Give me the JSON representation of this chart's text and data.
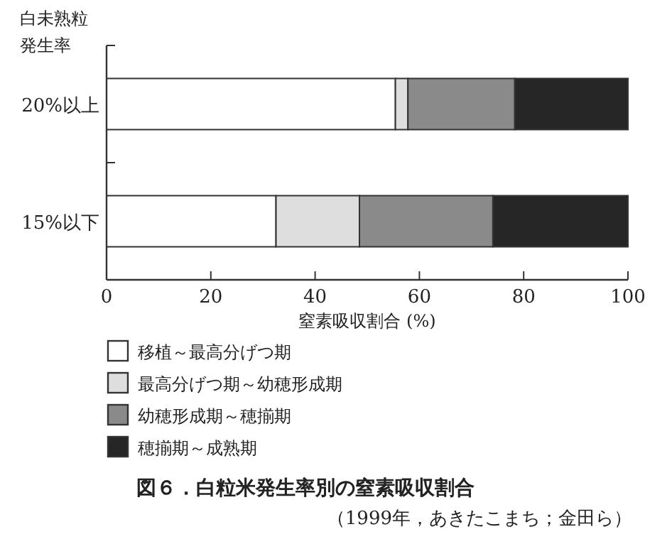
{
  "chart_data": {
    "type": "bar",
    "orientation": "horizontal",
    "stacked": true,
    "title": "図６．白粒米発生率別の窒素吸収割合",
    "subtitle": "（1999年，あきたこまち；金田ら）",
    "xlabel": "窒素吸収割合 (%)",
    "ylabel": "白未熟粒発生率",
    "categories": [
      "20%以上",
      "15%以下"
    ],
    "series": [
      {
        "name": "移植～最高分げつ期",
        "color": "#ffffff",
        "values": [
          55.4,
          32.5
        ]
      },
      {
        "name": "最高分げつ期～幼穂形成期",
        "color": "#dedede",
        "values": [
          2.4,
          16.0
        ]
      },
      {
        "name": "幼穂形成期～穂揃期",
        "color": "#8a8a8a",
        "values": [
          20.5,
          25.6
        ]
      },
      {
        "name": "穂揃期～成熟期",
        "color": "#262626",
        "values": [
          21.7,
          25.9
        ]
      }
    ],
    "xlim": [
      0,
      100
    ],
    "xticks": [
      0,
      20,
      40,
      60,
      80,
      100
    ],
    "grid": false,
    "legend": "bottom"
  }
}
